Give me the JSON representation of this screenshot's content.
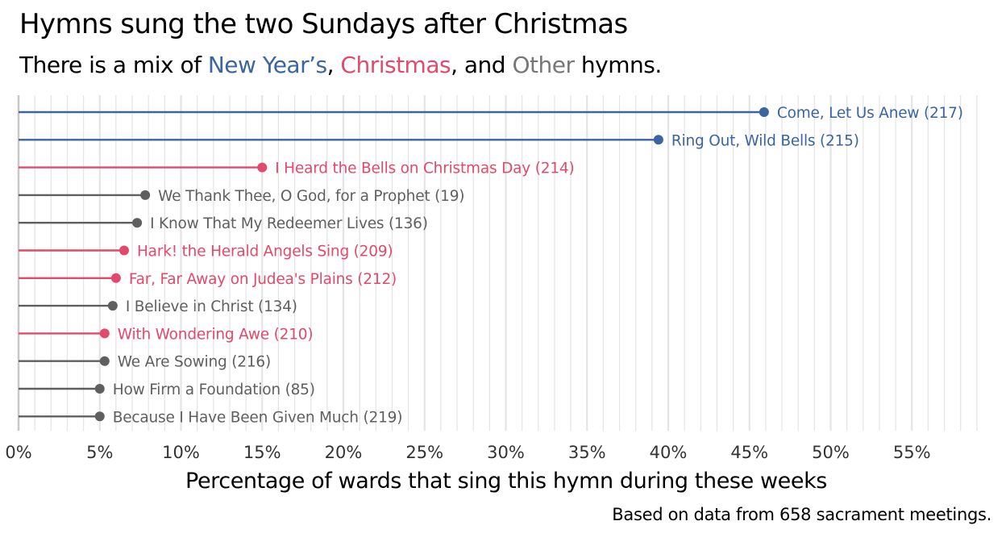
{
  "title": "Hymns sung the two Sundays after Christmas",
  "subtitle": {
    "prefix": "There is a mix of ",
    "new_year": "New Year’s",
    "sep1": ", ",
    "christmas": "Christmas",
    "sep2": ", and ",
    "other": "Other",
    "suffix": " hymns."
  },
  "caption": "Based on data from 658 sacrament meetings.",
  "colors": {
    "New Year's": "#3a65a0",
    "Christmas": "#e2496a",
    "Other": "#5f5f5f",
    "grid": "#e4e4e4",
    "axis": "#c8c8c8"
  },
  "chart_data": {
    "type": "lollipop",
    "xlabel": "Percentage of wards that sing this hymn during these weeks",
    "xlim": [
      0,
      59
    ],
    "x_ticks": [
      0,
      5,
      10,
      15,
      20,
      25,
      30,
      35,
      40,
      45,
      50,
      55
    ],
    "x_tick_labels": [
      "0%",
      "5%",
      "10%",
      "15%",
      "20%",
      "25%",
      "30%",
      "35%",
      "40%",
      "45%",
      "50%",
      "55%"
    ],
    "grid": true,
    "points": [
      {
        "label": "Come, Let Us Anew (217)",
        "value": 45.9,
        "group": "New Year's"
      },
      {
        "label": "Ring Out, Wild Bells (215)",
        "value": 39.4,
        "group": "New Year's"
      },
      {
        "label": "I Heard the Bells on Christmas Day (214)",
        "value": 15.0,
        "group": "Christmas"
      },
      {
        "label": "We Thank Thee, O God, for a Prophet (19)",
        "value": 7.8,
        "group": "Other"
      },
      {
        "label": "I Know That My Redeemer Lives (136)",
        "value": 7.3,
        "group": "Other"
      },
      {
        "label": "Hark! the Herald Angels Sing (209)",
        "value": 6.5,
        "group": "Christmas"
      },
      {
        "label": "Far, Far Away on Judea's Plains (212)",
        "value": 6.0,
        "group": "Christmas"
      },
      {
        "label": "I Believe in Christ (134)",
        "value": 5.8,
        "group": "Other"
      },
      {
        "label": "With Wondering Awe (210)",
        "value": 5.3,
        "group": "Christmas"
      },
      {
        "label": "We Are Sowing (216)",
        "value": 5.3,
        "group": "Other"
      },
      {
        "label": "How Firm a Foundation (85)",
        "value": 5.0,
        "group": "Other"
      },
      {
        "label": "Because I Have Been Given Much (219)",
        "value": 5.0,
        "group": "Other"
      }
    ]
  }
}
